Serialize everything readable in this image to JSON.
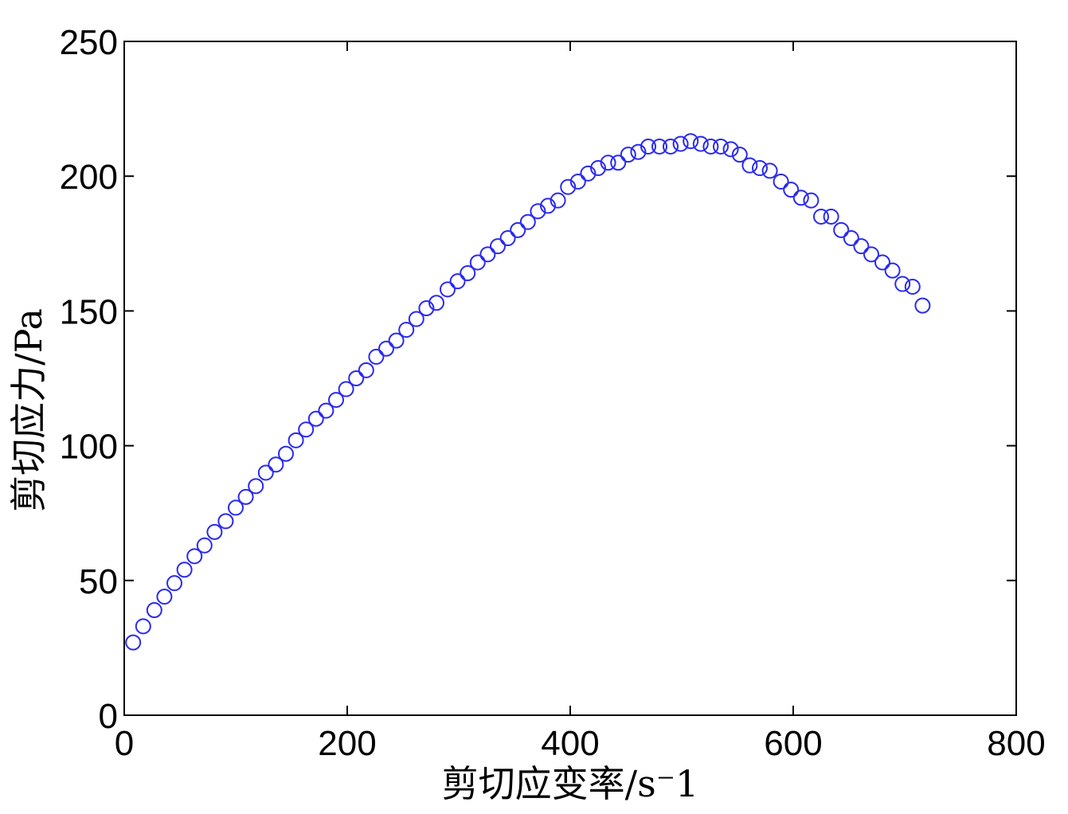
{
  "chart_data": {
    "type": "scatter",
    "xlabel": "剪切应变率/s⁻1",
    "ylabel": "剪切应力/Pa",
    "xlim": [
      0,
      800
    ],
    "ylim": [
      0,
      250
    ],
    "xticks": [
      0,
      200,
      400,
      600,
      800
    ],
    "yticks": [
      0,
      50,
      100,
      150,
      200,
      250
    ],
    "grid": false,
    "marker": "circle-open",
    "marker_color": "#2b2bf0",
    "series": [
      {
        "x": [
          8,
          17,
          27,
          36,
          45,
          54,
          63,
          72,
          81,
          91,
          100,
          109,
          118,
          127,
          136,
          145,
          154,
          163,
          172,
          181,
          190,
          199,
          208,
          217,
          226,
          235,
          244,
          253,
          262,
          271,
          280,
          290,
          299,
          308,
          317,
          326,
          335,
          344,
          353,
          362,
          371,
          380,
          389,
          398,
          407,
          416,
          425,
          434,
          443,
          452,
          461,
          470,
          480,
          490,
          499,
          508,
          517,
          526,
          535,
          544,
          552,
          561,
          570,
          579,
          589,
          598,
          607,
          616,
          625,
          634,
          643,
          652,
          661,
          670,
          680,
          689,
          698,
          707,
          716
        ],
        "y": [
          27,
          33,
          39,
          44,
          49,
          54,
          59,
          63,
          68,
          72,
          77,
          81,
          85,
          90,
          93,
          97,
          102,
          106,
          110,
          113,
          117,
          121,
          125,
          128,
          133,
          136,
          139,
          143,
          147,
          151,
          153,
          158,
          161,
          164,
          168,
          171,
          174,
          177,
          180,
          183,
          187,
          189,
          191,
          196,
          198,
          201,
          203,
          205,
          205,
          208,
          209,
          211,
          211,
          211,
          212,
          213,
          212,
          211,
          211,
          210,
          208,
          204,
          203,
          202,
          198,
          195,
          192,
          191,
          185,
          185,
          180,
          177,
          174,
          171,
          168,
          165,
          160,
          159,
          152
        ]
      }
    ]
  }
}
